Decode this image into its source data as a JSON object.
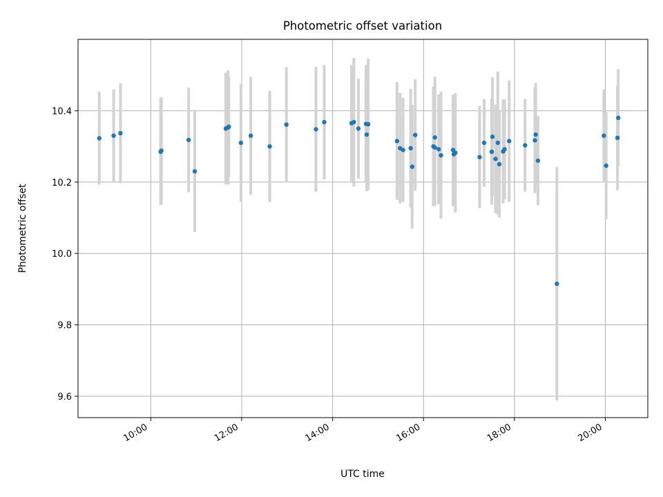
{
  "chart_data": {
    "type": "scatter",
    "title": "Photometric offset variation",
    "xlabel": "UTC time",
    "ylabel": "Photometric offset",
    "x_axis": "time",
    "xlim": [
      "08:24",
      "20:56"
    ],
    "ylim": [
      9.54,
      10.6
    ],
    "x_ticks": [
      "10:00",
      "12:00",
      "14:00",
      "16:00",
      "18:00",
      "20:00"
    ],
    "y_ticks": [
      "9.6",
      "9.8",
      "10.0",
      "10.2",
      "10.4"
    ],
    "grid": true,
    "colors": {
      "point": "#1f77b4",
      "errorbar": "#d3d3d3",
      "grid": "#b0b0b0"
    },
    "series": [
      {
        "x": [
          "08:52",
          "09:11",
          "09:20",
          "10:13",
          "10:14",
          "10:50",
          "10:58",
          "11:39",
          "11:42",
          "11:43",
          "11:59",
          "12:12",
          "12:37",
          "12:59",
          "13:38",
          "13:49",
          "14:25",
          "14:28",
          "14:34",
          "14:44",
          "14:45",
          "14:47",
          "15:25",
          "15:29",
          "15:33",
          "15:43",
          "15:45",
          "15:49",
          "16:13",
          "16:15",
          "16:15",
          "16:20",
          "16:23",
          "16:39",
          "16:40",
          "16:42",
          "17:14",
          "17:20",
          "17:30",
          "17:31",
          "17:35",
          "17:38",
          "17:40",
          "17:45",
          "17:47",
          "17:53",
          "18:14",
          "18:27",
          "18:28",
          "18:31",
          "18:56",
          "19:58",
          "20:01",
          "20:16",
          "20:17"
        ],
        "y": [
          10.323,
          10.33,
          10.337,
          10.285,
          10.288,
          10.318,
          10.23,
          10.35,
          10.353,
          10.355,
          10.31,
          10.33,
          10.3,
          10.361,
          10.348,
          10.368,
          10.365,
          10.368,
          10.35,
          10.363,
          10.333,
          10.362,
          10.315,
          10.295,
          10.29,
          10.295,
          10.243,
          10.332,
          10.3,
          10.297,
          10.325,
          10.292,
          10.275,
          10.29,
          10.278,
          10.282,
          10.27,
          10.31,
          10.285,
          10.327,
          10.265,
          10.31,
          10.25,
          10.286,
          10.292,
          10.315,
          10.303,
          10.317,
          10.333,
          10.26,
          9.915,
          10.33,
          10.246,
          10.324,
          10.38
        ],
        "err": [
          0.13,
          0.13,
          0.14,
          0.15,
          0.15,
          0.146,
          0.17,
          0.156,
          0.16,
          0.14,
          0.165,
          0.165,
          0.156,
          0.161,
          0.175,
          0.16,
          0.163,
          0.18,
          0.14,
          0.165,
          0.158,
          0.184,
          0.165,
          0.155,
          0.146,
          0.166,
          0.173,
          0.156,
          0.168,
          0.164,
          0.17,
          0.154,
          0.178,
          0.155,
          0.146,
          0.167,
          0.143,
          0.123,
          0.148,
          0.167,
          0.152,
          0.2,
          0.15,
          0.146,
          0.14,
          0.17,
          0.13,
          0.148,
          0.145,
          0.125,
          0.327,
          0.13,
          0.15,
          0.147,
          0.136
        ]
      }
    ]
  }
}
